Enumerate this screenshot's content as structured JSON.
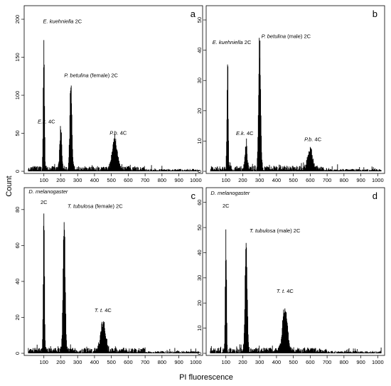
{
  "figure": {
    "ylabel": "Count",
    "xlabel": "PI fluorescence"
  },
  "chart_data": [
    {
      "type": "histogram",
      "panel_letter": "a",
      "xlim": [
        0,
        1024
      ],
      "ylim": [
        0,
        215
      ],
      "xticks": [
        100,
        200,
        300,
        400,
        500,
        600,
        700,
        800,
        900,
        1000
      ],
      "yticks": [
        0,
        50,
        100,
        150,
        200
      ],
      "peaks": [
        {
          "x": 100,
          "y": 202
        },
        {
          "x": 200,
          "y": 60
        },
        {
          "x": 260,
          "y": 123
        },
        {
          "x": 520,
          "y": 43
        }
      ],
      "annotations": [
        {
          "italic": "E. kuehniella",
          "rest": " 2C",
          "x": 95,
          "y": 195
        },
        {
          "italic": "E.k.",
          "rest": " 4C",
          "x": 63,
          "y": 63
        },
        {
          "italic": "P. betulina",
          "rest": " (female) 2C",
          "x": 220,
          "y": 124
        },
        {
          "italic": "P.b.",
          "rest": " 4C",
          "x": 490,
          "y": 48
        }
      ]
    },
    {
      "type": "histogram",
      "panel_letter": "b",
      "xlim": [
        0,
        1024
      ],
      "ylim": [
        0,
        54
      ],
      "xticks": [
        100,
        200,
        300,
        400,
        500,
        600,
        700,
        800,
        900,
        1000
      ],
      "yticks": [
        0,
        10,
        20,
        30,
        40,
        50
      ],
      "peaks": [
        {
          "x": 110,
          "y": 40
        },
        {
          "x": 220,
          "y": 10
        },
        {
          "x": 300,
          "y": 47
        },
        {
          "x": 600,
          "y": 7
        }
      ],
      "annotations": [
        {
          "italic": "E. kuehniella",
          "rest": " 2C",
          "x": 20,
          "y": 42
        },
        {
          "italic": "E.k.",
          "rest": " 4C",
          "x": 160,
          "y": 12
        },
        {
          "italic": "P. betulina",
          "rest": " (male) 2C",
          "x": 310,
          "y": 44
        },
        {
          "italic": "P.b.",
          "rest": " 4C",
          "x": 565,
          "y": 10
        }
      ]
    },
    {
      "type": "histogram",
      "panel_letter": "c",
      "xlim": [
        0,
        1024
      ],
      "ylim": [
        0,
        91
      ],
      "xticks": [
        100,
        200,
        300,
        400,
        500,
        600,
        700,
        800,
        900,
        1000
      ],
      "yticks": [
        0,
        20,
        40,
        60,
        80
      ],
      "peaks": [
        {
          "x": 100,
          "y": 80
        },
        {
          "x": 220,
          "y": 86
        },
        {
          "x": 450,
          "y": 18
        }
      ],
      "annotations": [
        {
          "italic": "D. melanogaster",
          "rest": "",
          "x": 10,
          "y": 89
        },
        {
          "italic": "",
          "rest": "2C",
          "x": 80,
          "y": 83
        },
        {
          "italic": "T. tubulosa",
          "rest": " (female) 2C",
          "x": 240,
          "y": 81
        },
        {
          "italic": "T. t.",
          "rest": " 4C",
          "x": 400,
          "y": 23
        }
      ]
    },
    {
      "type": "histogram",
      "panel_letter": "d",
      "xlim": [
        0,
        1024
      ],
      "ylim": [
        0,
        65
      ],
      "xticks": [
        100,
        200,
        300,
        400,
        500,
        600,
        700,
        800,
        900,
        1000
      ],
      "yticks": [
        0,
        10,
        20,
        30,
        40,
        50,
        60
      ],
      "peaks": [
        {
          "x": 100,
          "y": 54
        },
        {
          "x": 220,
          "y": 52
        },
        {
          "x": 450,
          "y": 19
        }
      ],
      "annotations": [
        {
          "italic": "D. melanogaster",
          "rest": "",
          "x": 10,
          "y": 63
        },
        {
          "italic": "",
          "rest": "2C",
          "x": 80,
          "y": 58
        },
        {
          "italic": "T. tubulosa",
          "rest": " (male) 2C",
          "x": 240,
          "y": 48
        },
        {
          "italic": "T. t.",
          "rest": " 4C",
          "x": 400,
          "y": 24
        }
      ]
    }
  ]
}
